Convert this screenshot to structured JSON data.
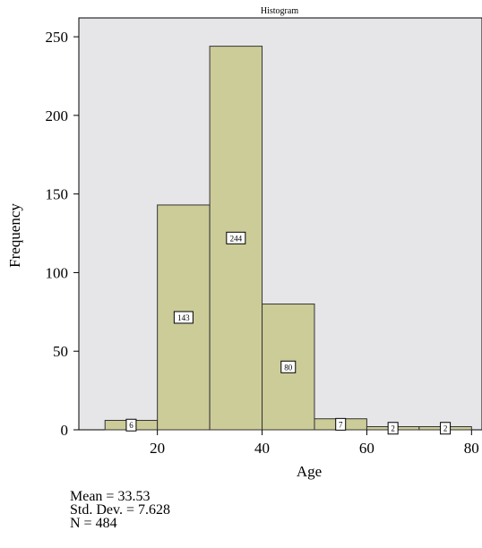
{
  "chart_data": {
    "type": "bar",
    "title": "Histogram",
    "xlabel": "Age",
    "ylabel": "Frequency",
    "xlim": [
      5,
      82
    ],
    "ylim": [
      0,
      262
    ],
    "x_ticks": [
      20,
      40,
      60,
      80
    ],
    "y_ticks": [
      0,
      50,
      100,
      150,
      200,
      250
    ],
    "bins": [
      {
        "x0": 10,
        "x1": 20,
        "count": 6
      },
      {
        "x0": 20,
        "x1": 30,
        "count": 143
      },
      {
        "x0": 30,
        "x1": 40,
        "count": 244
      },
      {
        "x0": 40,
        "x1": 50,
        "count": 80
      },
      {
        "x0": 50,
        "x1": 60,
        "count": 7
      },
      {
        "x0": 60,
        "x1": 70,
        "count": 2
      },
      {
        "x0": 70,
        "x1": 80,
        "count": 2
      }
    ],
    "grid": false,
    "colors": {
      "plot_background": "#e6e6e9",
      "bar_fill": "#cccc99",
      "bar_stroke": "#333333"
    }
  },
  "stats": {
    "mean": "Mean = 33.53",
    "std_dev": "Std. Dev. = 7.628",
    "n": "N = 484"
  }
}
